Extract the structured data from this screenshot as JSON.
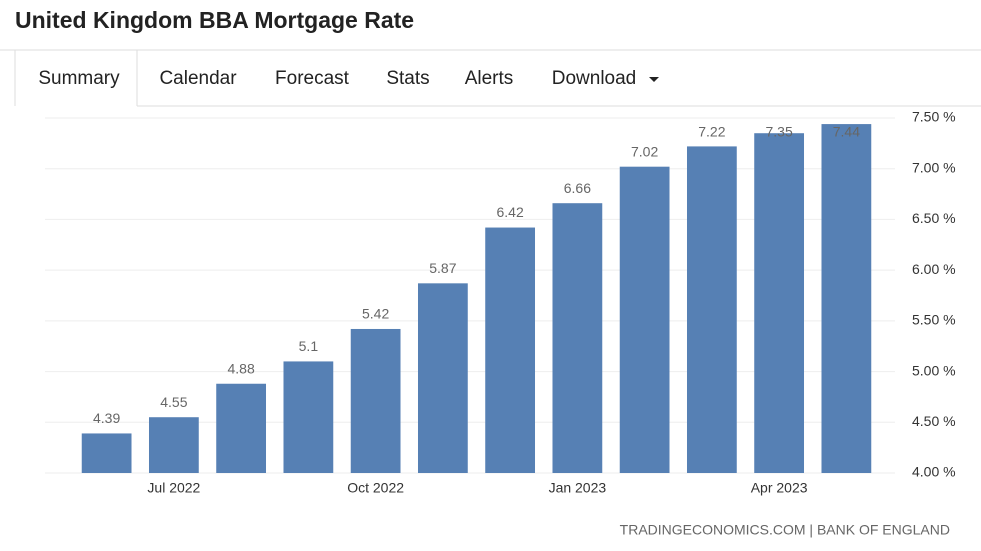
{
  "header": {
    "title": "United Kingdom BBA Mortgage Rate"
  },
  "tabs": [
    "Summary",
    "Calendar",
    "Forecast",
    "Stats",
    "Alerts",
    "Download"
  ],
  "chart_data": {
    "type": "bar",
    "categories": [
      null,
      "Jul 2022",
      null,
      null,
      "Oct 2022",
      null,
      null,
      "Jan 2023",
      null,
      null,
      "Apr 2023",
      null
    ],
    "values": [
      4.39,
      4.55,
      4.88,
      5.1,
      5.42,
      5.87,
      6.42,
      6.66,
      7.02,
      7.22,
      7.35,
      7.44
    ],
    "color": "#5680b4",
    "ylim": [
      4,
      7.5
    ],
    "yticks": [
      {
        "value": 4,
        "label": "4.00 %"
      },
      {
        "value": 4.5,
        "label": "4.50 %"
      },
      {
        "value": 5,
        "label": "5.00 %"
      },
      {
        "value": 5.5,
        "label": "5.50 %"
      },
      {
        "value": 6,
        "label": "6.00 %"
      },
      {
        "value": 6.5,
        "label": "6.50 %"
      },
      {
        "value": 7,
        "label": "7.00 %"
      },
      {
        "value": 7.5,
        "label": "7.50 %"
      }
    ],
    "grid": true,
    "source": "TRADINGECONOMICS.COM | BANK OF ENGLAND"
  }
}
